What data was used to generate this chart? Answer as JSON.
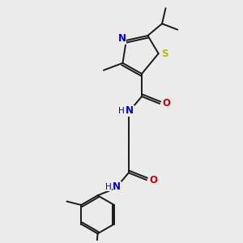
{
  "bg_color": "#ebebeb",
  "bond_color": "#1a1a1a",
  "N_color": "#0000cc",
  "O_color": "#cc0000",
  "S_color": "#b8b800",
  "text_color": "#1a1a1a",
  "figsize": [
    3.0,
    3.0
  ],
  "dpi": 100,
  "xlim": [
    0,
    10
  ],
  "ylim": [
    0,
    10
  ]
}
